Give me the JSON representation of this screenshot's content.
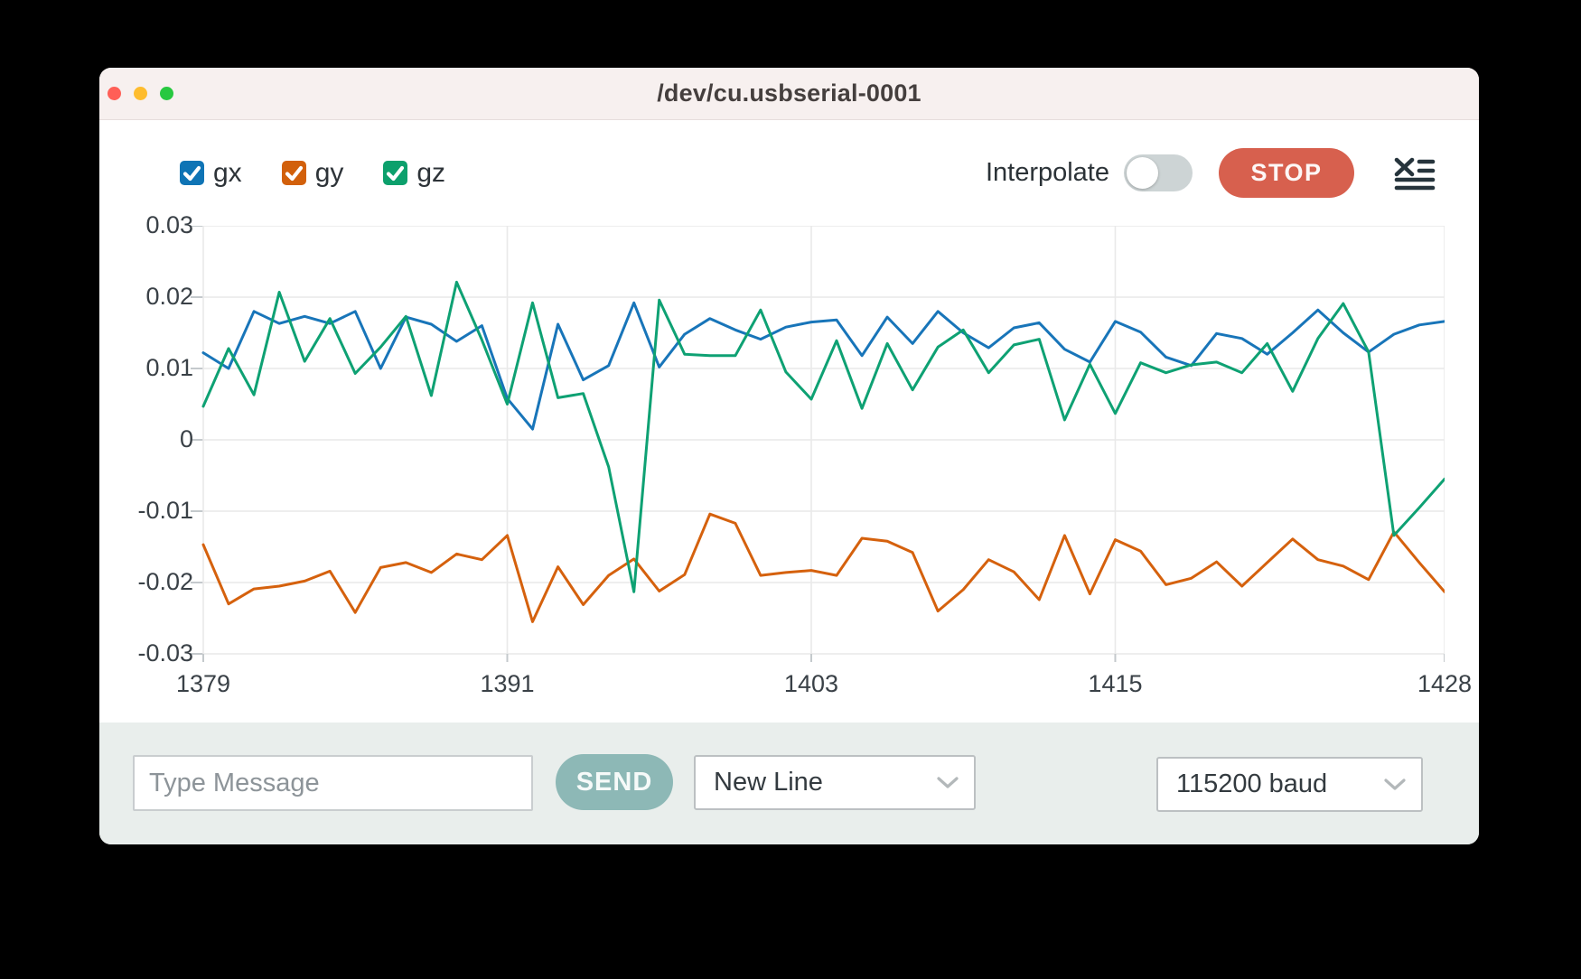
{
  "window": {
    "title": "/dev/cu.usbserial-0001"
  },
  "traffic_lights": {
    "close": "#ff5f57",
    "minimize": "#febc2e",
    "zoom": "#28c840"
  },
  "toolbar": {
    "series_toggles": [
      {
        "label": "gx",
        "color": "#0f74b5",
        "checked": true
      },
      {
        "label": "gy",
        "color": "#d2600b",
        "checked": true
      },
      {
        "label": "gz",
        "color": "#0ca06c",
        "checked": true
      }
    ],
    "interpolate_label": "Interpolate",
    "interpolate_on": false,
    "stop_label": "STOP",
    "clear_icon": "clear-list-icon",
    "stop_color": "#d7604e"
  },
  "chart_data": {
    "type": "line",
    "xlim": [
      1379,
      1428
    ],
    "ylim": [
      -0.03,
      0.03
    ],
    "x_step": 1,
    "x_ticks": [
      1379,
      1391,
      1403,
      1415,
      1428
    ],
    "y_ticks": [
      0.03,
      0.02,
      0.01,
      0,
      -0.01,
      -0.02,
      -0.03
    ],
    "grid": true,
    "legend_position": "top-left",
    "series": [
      {
        "name": "gx",
        "color": "#1875b9",
        "values": [
          0.0122,
          0.01,
          0.018,
          0.0163,
          0.0173,
          0.0163,
          0.018,
          0.01,
          0.0172,
          0.0162,
          0.0138,
          0.016,
          0.0058,
          0.0015,
          0.0162,
          0.0084,
          0.0104,
          0.0192,
          0.0102,
          0.0148,
          0.017,
          0.0154,
          0.0141,
          0.0158,
          0.0165,
          0.0168,
          0.0118,
          0.0172,
          0.0135,
          0.018,
          0.015,
          0.0129,
          0.0157,
          0.0164,
          0.0127,
          0.0109,
          0.0166,
          0.0151,
          0.0116,
          0.0104,
          0.0149,
          0.0142,
          0.012,
          0.015,
          0.0182,
          0.015,
          0.0123,
          0.0148,
          0.0161,
          0.0166
        ]
      },
      {
        "name": "gy",
        "color": "#d5610d",
        "values": [
          -0.0147,
          -0.023,
          -0.0209,
          -0.0205,
          -0.0198,
          -0.0184,
          -0.0242,
          -0.0179,
          -0.0172,
          -0.0186,
          -0.016,
          -0.0168,
          -0.0134,
          -0.0255,
          -0.0178,
          -0.0231,
          -0.019,
          -0.0167,
          -0.0212,
          -0.0189,
          -0.0104,
          -0.0117,
          -0.019,
          -0.0186,
          -0.0183,
          -0.019,
          -0.0138,
          -0.0142,
          -0.0158,
          -0.024,
          -0.021,
          -0.0168,
          -0.0185,
          -0.0224,
          -0.0134,
          -0.0216,
          -0.014,
          -0.0156,
          -0.0203,
          -0.0194,
          -0.0171,
          -0.0205,
          -0.0172,
          -0.0139,
          -0.0168,
          -0.0177,
          -0.0196,
          -0.0129,
          -0.0172,
          -0.0213
        ]
      },
      {
        "name": "gz",
        "color": "#0ea173",
        "values": [
          0.0047,
          0.0128,
          0.0063,
          0.0207,
          0.011,
          0.017,
          0.0093,
          0.013,
          0.0173,
          0.0062,
          0.0221,
          0.014,
          0.005,
          0.0192,
          0.0059,
          0.0065,
          -0.0038,
          -0.0213,
          0.0196,
          0.012,
          0.0118,
          0.0118,
          0.0182,
          0.0095,
          0.0057,
          0.0139,
          0.0044,
          0.0135,
          0.007,
          0.013,
          0.0154,
          0.0094,
          0.0133,
          0.0141,
          0.0028,
          0.0106,
          0.0037,
          0.0108,
          0.0094,
          0.0105,
          0.0109,
          0.0094,
          0.0135,
          0.0068,
          0.0142,
          0.0191,
          0.0123,
          -0.0134,
          -0.0095,
          -0.0055
        ]
      }
    ]
  },
  "message_bar": {
    "input_placeholder": "Type Message",
    "input_value": "",
    "send_label": "SEND",
    "line_ending_value": "New Line",
    "baud_value": "115200 baud",
    "send_color": "#8db8b6"
  }
}
